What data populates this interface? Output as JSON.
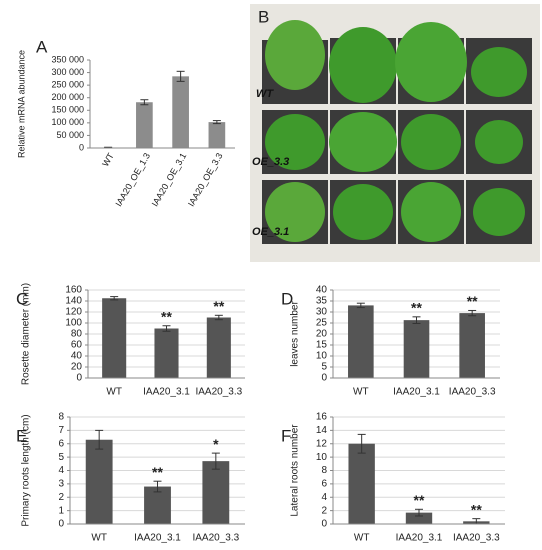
{
  "chart_data": [
    {
      "type": "bar",
      "panel_label": "A",
      "ylabel": "Relative mRNA abundance",
      "categories": [
        "WT",
        "IAA20_OE_1.3",
        "IAA20_OE_3.1",
        "IAA20_OE_3.3"
      ],
      "values": [
        2000,
        182000,
        285000,
        103000
      ],
      "errors": [
        1000,
        10000,
        20000,
        6000
      ],
      "color": "#8c8c8c",
      "grid": false,
      "ylim": [
        0,
        350000
      ],
      "yticks": [
        0,
        {
          "value": 50000,
          "label": "50 000"
        },
        {
          "value": 100000,
          "label": "100 000"
        },
        {
          "value": 150000,
          "label": "150 000"
        },
        {
          "value": 200000,
          "label": "200 000"
        },
        {
          "value": 250000,
          "label": "250 000"
        },
        {
          "value": 300000,
          "label": "300 000"
        },
        {
          "value": 350000,
          "label": "350 000"
        }
      ]
    },
    {
      "type": "bar",
      "panel_label": "C",
      "ylabel": "Rosette diameter (mm)",
      "categories": [
        "WT",
        "IAA20_3.1",
        "IAA20_3.3"
      ],
      "values": [
        145,
        90,
        110
      ],
      "errors": [
        3,
        5,
        4
      ],
      "annotations": [
        {
          "x": "IAA20_3.1",
          "text": "**"
        },
        {
          "x": "IAA20_3.3",
          "text": "**"
        }
      ],
      "color": "#555555",
      "grid": true,
      "ylim": [
        0,
        160
      ],
      "yticks": [
        0,
        20,
        40,
        60,
        80,
        100,
        120,
        140,
        160
      ]
    },
    {
      "type": "bar",
      "panel_label": "D",
      "ylabel": "leaves number",
      "categories": [
        "WT",
        "IAA20_3.1",
        "IAA20_3.3"
      ],
      "values": [
        33,
        26.3,
        29.5
      ],
      "errors": [
        1,
        1.5,
        1.2
      ],
      "annotations": [
        {
          "x": "IAA20_3.1",
          "text": "**"
        },
        {
          "x": "IAA20_3.3",
          "text": "**"
        }
      ],
      "color": "#555555",
      "grid": true,
      "ylim": [
        0,
        40
      ],
      "yticks": [
        0,
        5,
        10,
        15,
        20,
        25,
        30,
        35,
        40
      ]
    },
    {
      "type": "bar",
      "panel_label": "E",
      "ylabel": "Primary roots length (cm)",
      "categories": [
        "WT",
        "IAA20_3.1",
        "IAA20_3.3"
      ],
      "values": [
        6.3,
        2.8,
        4.7
      ],
      "errors": [
        0.7,
        0.4,
        0.6
      ],
      "annotations": [
        {
          "x": "IAA20_3.1",
          "text": "**"
        },
        {
          "x": "IAA20_3.3",
          "text": "*"
        }
      ],
      "color": "#555555",
      "grid": true,
      "ylim": [
        0,
        8
      ],
      "yticks": [
        0,
        1,
        2,
        3,
        4,
        5,
        6,
        7,
        8
      ]
    },
    {
      "type": "bar",
      "panel_label": "F",
      "ylabel": "Lateral roots number",
      "categories": [
        "WT",
        "IAA20_3.1",
        "IAA20_3.3"
      ],
      "values": [
        12,
        1.7,
        0.4
      ],
      "errors": [
        1.4,
        0.5,
        0.4
      ],
      "annotations": [
        {
          "x": "IAA20_3.1",
          "text": "**"
        },
        {
          "x": "IAA20_3.3",
          "text": "**"
        }
      ],
      "color": "#555555",
      "grid": true,
      "ylim": [
        0,
        16
      ],
      "yticks": [
        0,
        2,
        4,
        6,
        8,
        10,
        12,
        14,
        16
      ]
    }
  ],
  "photo": {
    "panel_label": "B",
    "labels": [
      "WT",
      "OE_3.3",
      "OE_3.1"
    ]
  }
}
